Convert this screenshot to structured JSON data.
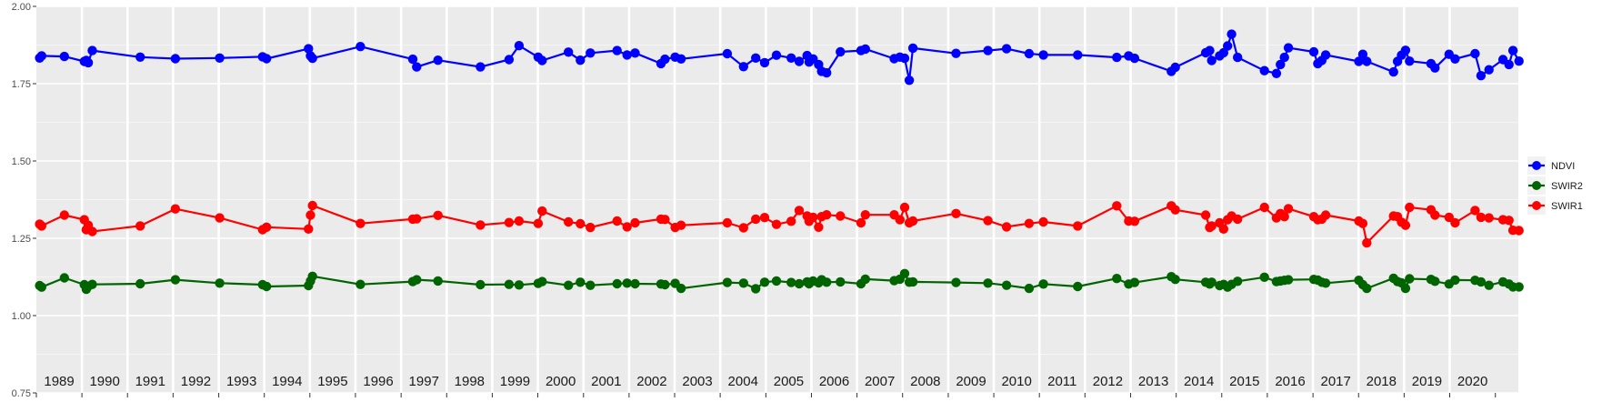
{
  "chart_data": {
    "type": "line",
    "title": "",
    "xlabel": "",
    "ylabel": "",
    "ylim": [
      0.75,
      2.0
    ],
    "xlim": [
      "1988-07-01",
      "2021-01-01"
    ],
    "y_ticks": [
      "0.75",
      "1.00",
      "1.25",
      "1.50",
      "1.75",
      "2.00"
    ],
    "year_labels": [
      "1989",
      "1990",
      "1991",
      "1992",
      "1993",
      "1994",
      "1995",
      "1996",
      "1997",
      "1998",
      "1999",
      "2000",
      "2001",
      "2002",
      "2003",
      "2004",
      "2005",
      "2006",
      "2007",
      "2008",
      "2009",
      "2010",
      "2011",
      "2012",
      "2013",
      "2014",
      "2015",
      "2016",
      "2017",
      "2018",
      "2019",
      "2020"
    ],
    "grid": true,
    "legend_position": "right",
    "series": [
      {
        "name": "NDVI",
        "color": "#0000ff",
        "x": [
          "1988-07-27",
          "1988-08-12",
          "1989-02-10",
          "1989-07-20",
          "1989-08-05",
          "1989-08-21",
          "1989-09-22",
          "1990-10-11",
          "1991-07-20",
          "1992-07-08",
          "1993-06-17",
          "1993-07-19",
          "1994-06-20",
          "1994-07-06",
          "1994-07-22",
          "1995-08-10",
          "1996-10-02",
          "1996-11-03",
          "1997-04-22",
          "1998-03-28",
          "1998-11-13",
          "1999-02-01",
          "1999-07-04",
          "1999-08-05",
          "2000-03-02",
          "2000-06-06",
          "2000-08-25",
          "2001-03-27",
          "2001-06-15",
          "2001-08-18",
          "2002-03-14",
          "2002-04-15",
          "2002-07-05",
          "2002-08-22",
          "2003-08-27",
          "2004-01-04",
          "2004-04-11",
          "2004-06-21",
          "2004-09-24",
          "2005-01-20",
          "2005-03-25",
          "2005-05-27",
          "2005-06-12",
          "2005-07-14",
          "2005-08-28",
          "2005-09-21",
          "2005-10-31",
          "2006-02-18",
          "2006-08-02",
          "2006-09-06",
          "2007-04-25",
          "2007-06-10",
          "2007-07-18",
          "2007-08-24",
          "2007-09-22",
          "2008-09-01",
          "2009-05-15",
          "2009-10-11",
          "2010-04-10",
          "2010-08-02",
          "2011-05-04",
          "2012-03-12",
          "2012-06-15",
          "2012-08-02",
          "2013-05-23",
          "2013-06-24",
          "2014-02-22",
          "2014-03-26",
          "2014-04-11",
          "2014-06-14",
          "2014-07-16",
          "2014-08-17",
          "2014-09-18",
          "2014-11-05",
          "2015-06-08",
          "2015-09-12",
          "2015-10-14",
          "2015-11-15",
          "2015-12-17",
          "2016-07-07",
          "2016-08-08",
          "2016-09-09",
          "2016-10-11",
          "2017-07-03",
          "2017-08-04",
          "2017-09-05",
          "2018-04-07",
          "2018-05-09",
          "2018-06-10",
          "2018-07-12",
          "2018-08-13",
          "2019-02-01",
          "2019-03-05",
          "2019-06-26",
          "2019-08-13",
          "2020-01-20",
          "2020-03-08",
          "2020-05-11",
          "2020-08-31",
          "2020-10-18",
          "2020-11-19",
          "2021-01-06"
        ],
        "y": [
          1.833,
          1.84,
          1.838,
          1.822,
          1.825,
          1.818,
          1.857,
          1.836,
          1.831,
          1.833,
          1.837,
          1.831,
          1.863,
          1.84,
          1.832,
          1.87,
          1.829,
          1.804,
          1.826,
          1.804,
          1.828,
          1.873,
          1.836,
          1.825,
          1.852,
          1.826,
          1.849,
          1.857,
          1.843,
          1.849,
          1.815,
          1.829,
          1.836,
          1.83,
          1.847,
          1.805,
          1.833,
          1.818,
          1.842,
          1.833,
          1.822,
          1.841,
          1.82,
          1.83,
          1.812,
          1.79,
          1.785,
          1.853,
          1.857,
          1.862,
          1.831,
          1.836,
          1.832,
          1.761,
          1.865,
          1.848,
          1.857,
          1.863,
          1.847,
          1.843,
          1.843,
          1.835,
          1.84,
          1.832,
          1.79,
          1.803,
          1.85,
          1.857,
          1.825,
          1.84,
          1.85,
          1.872,
          1.91,
          1.835,
          1.792,
          1.783,
          1.812,
          1.835,
          1.866,
          1.853,
          1.815,
          1.825,
          1.843,
          1.822,
          1.845,
          1.822,
          1.788,
          1.822,
          1.842,
          1.858,
          1.823,
          1.815,
          1.801,
          1.845,
          1.83,
          1.847,
          1.776,
          1.795,
          1.828,
          1.812,
          1.857,
          1.823
        ]
      },
      {
        "name": "SWIR2",
        "color": "#006400",
        "x": [
          "1988-07-27",
          "1988-08-12",
          "1989-02-10",
          "1989-07-20",
          "1989-08-05",
          "1989-08-21",
          "1989-09-22",
          "1990-10-11",
          "1991-07-20",
          "1992-07-08",
          "1993-06-17",
          "1993-07-19",
          "1994-06-20",
          "1994-07-06",
          "1994-07-22",
          "1995-08-10",
          "1996-10-02",
          "1996-11-03",
          "1997-04-22",
          "1998-03-28",
          "1998-11-13",
          "1999-02-01",
          "1999-07-04",
          "1999-08-05",
          "2000-03-02",
          "2000-06-06",
          "2000-08-25",
          "2001-03-27",
          "2001-06-15",
          "2001-08-18",
          "2002-03-14",
          "2002-04-15",
          "2002-07-05",
          "2002-08-22",
          "2003-08-27",
          "2004-01-04",
          "2004-04-11",
          "2004-06-21",
          "2004-09-24",
          "2005-01-20",
          "2005-03-25",
          "2005-05-27",
          "2005-06-12",
          "2005-07-14",
          "2005-08-28",
          "2005-09-21",
          "2005-10-31",
          "2006-02-18",
          "2006-08-02",
          "2006-09-06",
          "2007-04-25",
          "2007-06-10",
          "2007-07-18",
          "2007-08-24",
          "2007-09-22",
          "2008-09-01",
          "2009-05-15",
          "2009-10-11",
          "2010-04-10",
          "2010-08-02",
          "2011-05-04",
          "2012-03-12",
          "2012-06-15",
          "2012-08-02",
          "2013-05-23",
          "2013-06-24",
          "2014-02-22",
          "2014-03-26",
          "2014-04-11",
          "2014-06-14",
          "2014-07-16",
          "2014-08-17",
          "2014-09-18",
          "2014-11-05",
          "2015-06-08",
          "2015-09-12",
          "2015-10-14",
          "2015-11-15",
          "2015-12-17",
          "2016-07-07",
          "2016-08-08",
          "2016-09-09",
          "2016-10-11",
          "2017-07-03",
          "2017-08-04",
          "2017-09-05",
          "2018-04-07",
          "2018-05-09",
          "2018-06-10",
          "2018-07-12",
          "2018-08-13",
          "2019-02-01",
          "2019-03-05",
          "2019-06-26",
          "2019-08-13",
          "2020-01-20",
          "2020-03-08",
          "2020-05-11",
          "2020-08-31",
          "2020-10-18",
          "2020-11-19",
          "2021-01-06"
        ],
        "y": [
          1.097,
          1.092,
          1.122,
          1.1,
          1.085,
          1.095,
          1.101,
          1.103,
          1.116,
          1.105,
          1.1,
          1.094,
          1.097,
          1.112,
          1.127,
          1.101,
          1.11,
          1.116,
          1.112,
          1.1,
          1.101,
          1.099,
          1.104,
          1.11,
          1.098,
          1.108,
          1.098,
          1.103,
          1.105,
          1.103,
          1.102,
          1.1,
          1.104,
          1.088,
          1.107,
          1.105,
          1.087,
          1.108,
          1.112,
          1.107,
          1.103,
          1.109,
          1.103,
          1.112,
          1.106,
          1.116,
          1.108,
          1.109,
          1.103,
          1.118,
          1.113,
          1.118,
          1.136,
          1.108,
          1.109,
          1.107,
          1.105,
          1.098,
          1.088,
          1.102,
          1.094,
          1.12,
          1.102,
          1.107,
          1.126,
          1.117,
          1.108,
          1.102,
          1.108,
          1.097,
          1.101,
          1.092,
          1.101,
          1.111,
          1.124,
          1.11,
          1.112,
          1.114,
          1.116,
          1.117,
          1.115,
          1.108,
          1.105,
          1.114,
          1.1,
          1.088,
          1.121,
          1.11,
          1.106,
          1.088,
          1.119,
          1.117,
          1.111,
          1.102,
          1.115,
          1.114,
          1.109,
          1.098,
          1.109,
          1.102,
          1.093,
          1.093
        ]
      },
      {
        "name": "SWIR1",
        "color": "#ff0000",
        "x": [
          "1988-07-27",
          "1988-08-12",
          "1989-02-10",
          "1989-07-20",
          "1989-08-05",
          "1989-08-21",
          "1989-09-22",
          "1990-10-11",
          "1991-07-20",
          "1992-07-08",
          "1993-06-17",
          "1993-07-19",
          "1994-06-20",
          "1994-07-06",
          "1994-07-22",
          "1995-08-10",
          "1996-10-02",
          "1996-11-03",
          "1997-04-22",
          "1998-03-28",
          "1998-11-13",
          "1999-02-01",
          "1999-07-04",
          "1999-08-05",
          "2000-03-02",
          "2000-06-06",
          "2000-08-25",
          "2001-03-27",
          "2001-06-15",
          "2001-08-18",
          "2002-03-14",
          "2002-04-15",
          "2002-07-05",
          "2002-08-22",
          "2003-08-27",
          "2004-01-04",
          "2004-04-11",
          "2004-06-21",
          "2004-09-24",
          "2005-01-20",
          "2005-03-25",
          "2005-05-27",
          "2005-06-12",
          "2005-07-14",
          "2005-08-28",
          "2005-09-21",
          "2005-10-31",
          "2006-02-18",
          "2006-08-02",
          "2006-09-06",
          "2007-04-25",
          "2007-06-10",
          "2007-07-18",
          "2007-08-24",
          "2007-09-22",
          "2008-09-01",
          "2009-05-15",
          "2009-10-11",
          "2010-04-10",
          "2010-08-02",
          "2011-05-04",
          "2012-03-12",
          "2012-06-15",
          "2012-08-02",
          "2013-05-23",
          "2013-06-24",
          "2014-02-22",
          "2014-03-26",
          "2014-04-11",
          "2014-06-14",
          "2014-07-16",
          "2014-08-17",
          "2014-09-18",
          "2014-11-05",
          "2015-06-08",
          "2015-09-12",
          "2015-10-14",
          "2015-11-15",
          "2015-12-17",
          "2016-07-07",
          "2016-08-08",
          "2016-09-09",
          "2016-10-11",
          "2017-07-03",
          "2017-08-04",
          "2017-09-05",
          "2018-04-07",
          "2018-05-09",
          "2018-06-10",
          "2018-07-12",
          "2018-08-13",
          "2019-02-01",
          "2019-03-05",
          "2019-06-26",
          "2019-08-13",
          "2020-01-20",
          "2020-03-08",
          "2020-05-11",
          "2020-08-31",
          "2020-10-18",
          "2020-11-19",
          "2021-01-06"
        ],
        "y": [
          1.296,
          1.29,
          1.325,
          1.31,
          1.278,
          1.292,
          1.272,
          1.29,
          1.345,
          1.316,
          1.278,
          1.286,
          1.28,
          1.325,
          1.356,
          1.298,
          1.312,
          1.313,
          1.324,
          1.293,
          1.301,
          1.306,
          1.298,
          1.338,
          1.303,
          1.297,
          1.285,
          1.306,
          1.287,
          1.3,
          1.312,
          1.311,
          1.285,
          1.292,
          1.3,
          1.284,
          1.312,
          1.317,
          1.295,
          1.305,
          1.34,
          1.322,
          1.305,
          1.318,
          1.286,
          1.32,
          1.326,
          1.322,
          1.3,
          1.326,
          1.326,
          1.31,
          1.35,
          1.3,
          1.306,
          1.33,
          1.307,
          1.287,
          1.298,
          1.303,
          1.29,
          1.355,
          1.306,
          1.305,
          1.355,
          1.342,
          1.325,
          1.285,
          1.29,
          1.3,
          1.28,
          1.31,
          1.322,
          1.312,
          1.35,
          1.316,
          1.33,
          1.32,
          1.346,
          1.32,
          1.31,
          1.312,
          1.325,
          1.306,
          1.298,
          1.235,
          1.322,
          1.32,
          1.302,
          1.292,
          1.35,
          1.342,
          1.325,
          1.318,
          1.3,
          1.34,
          1.318,
          1.316,
          1.31,
          1.308,
          1.276,
          1.275
        ]
      }
    ]
  }
}
